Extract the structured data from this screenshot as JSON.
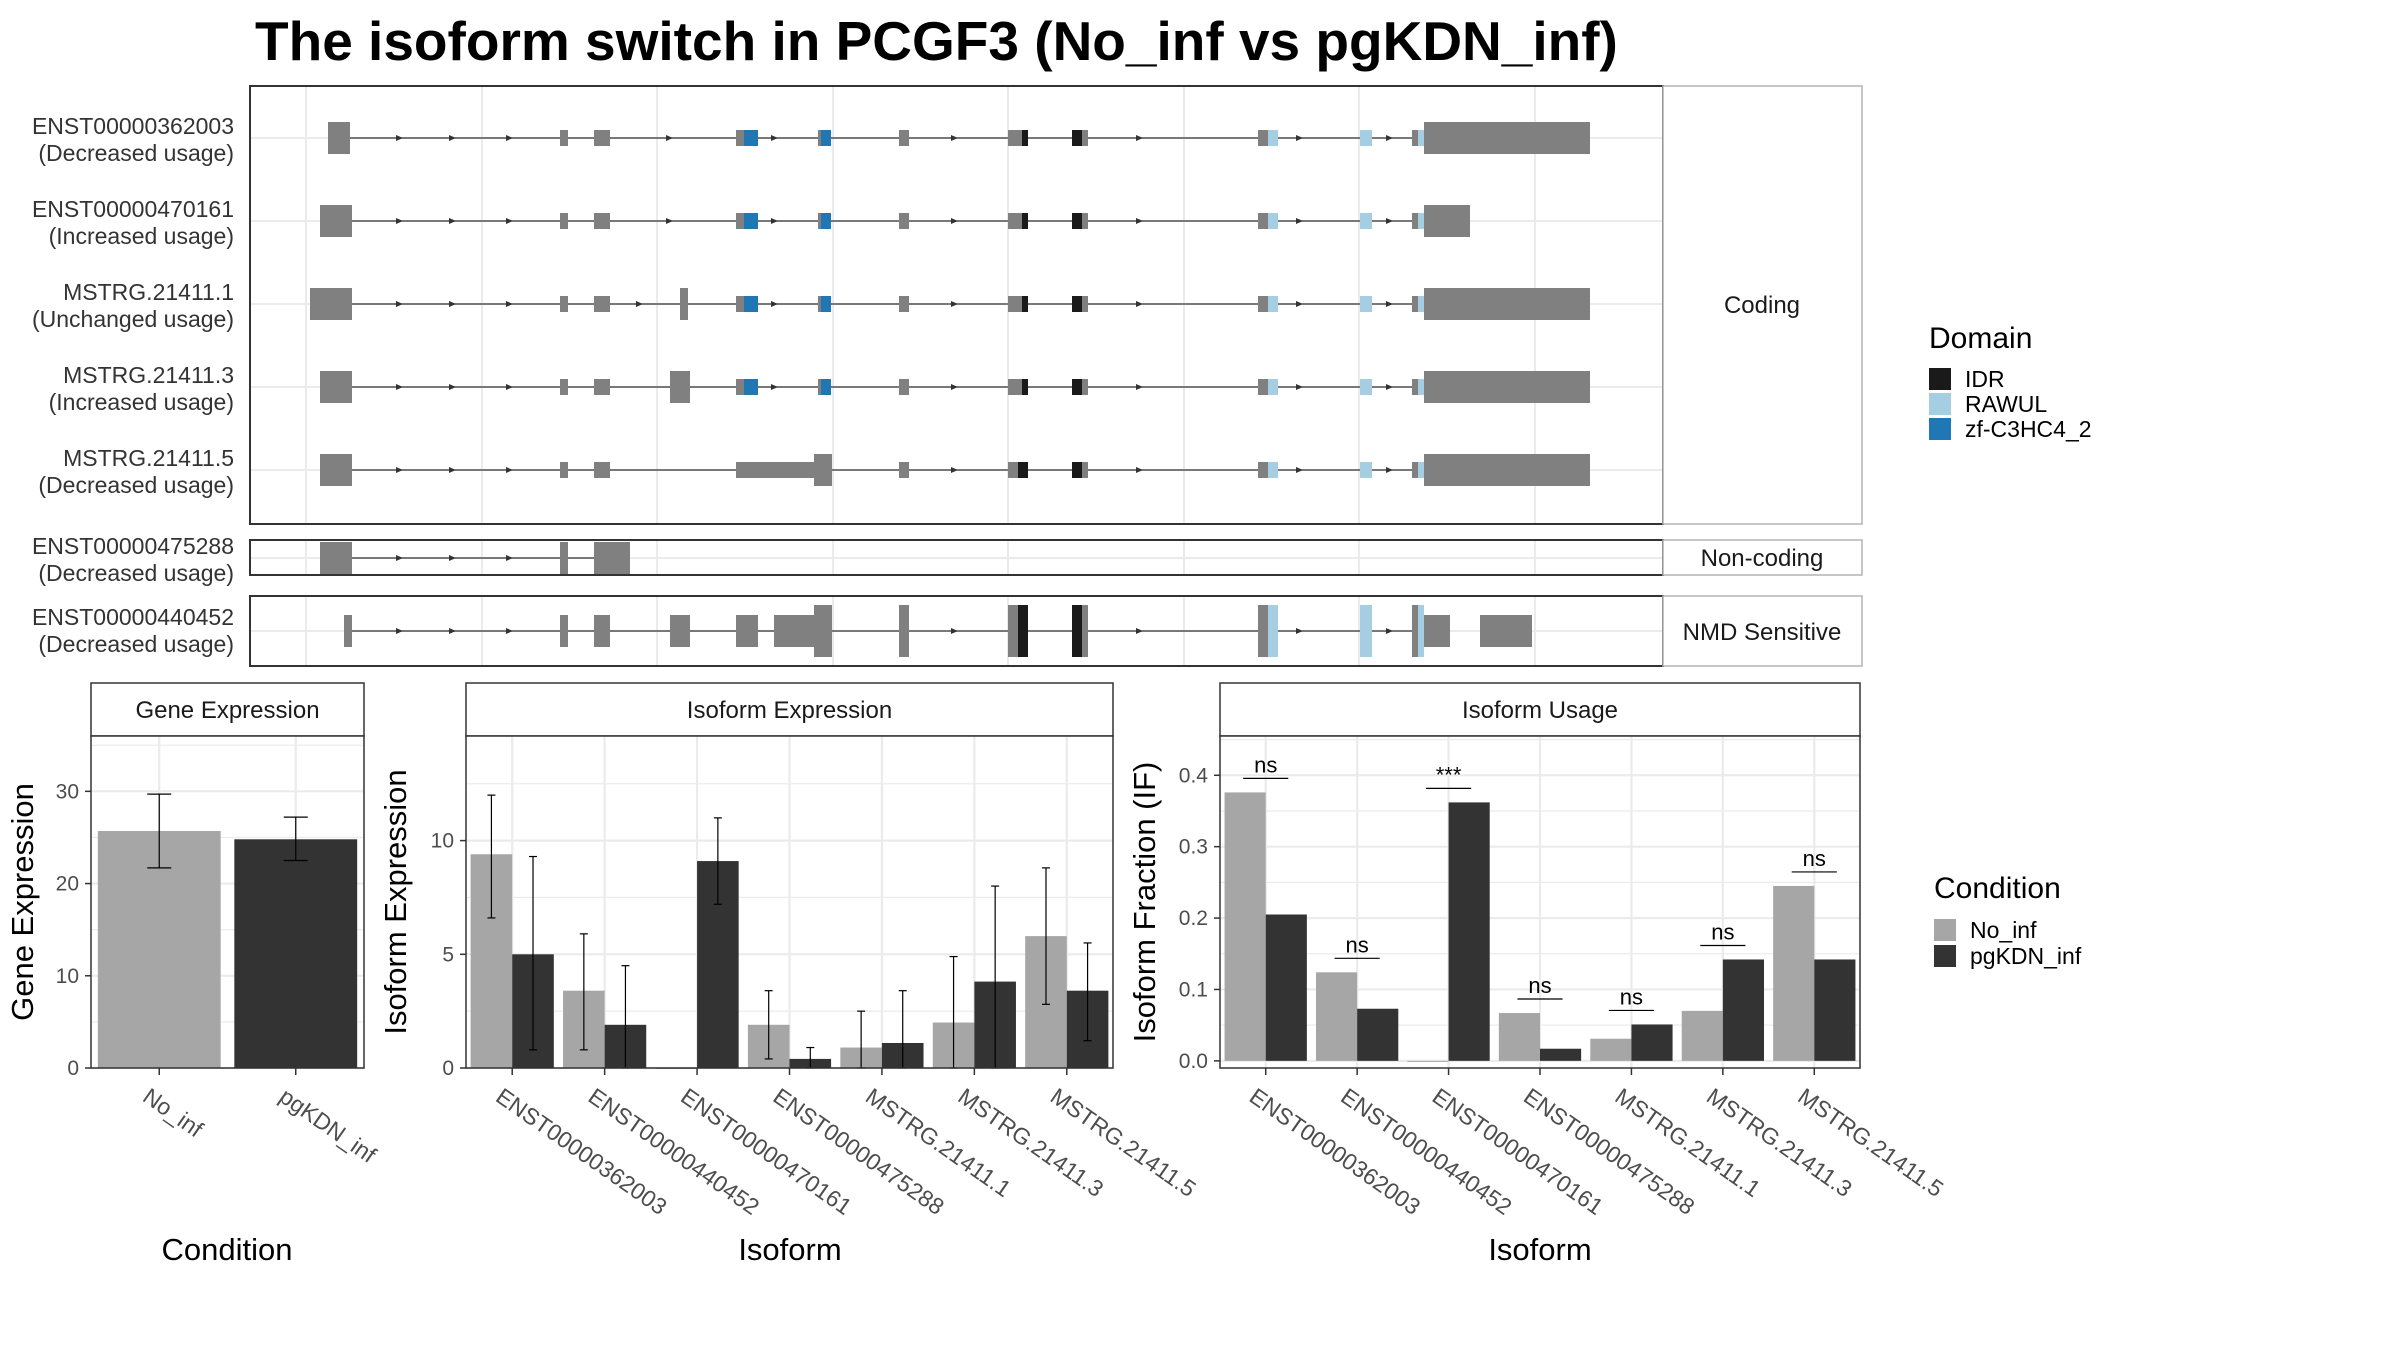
{
  "title": "The isoform switch in PCGF3 (No_inf vs pgKDN_inf)",
  "colors": {
    "exon": "#808080",
    "IDR": "#1a1a1a",
    "RAWUL": "#a6cee3",
    "zf-C3HC4_2": "#1f78b4",
    "No_inf": "#a6a6a6",
    "pgKDN_inf": "#333333",
    "grid": "#ebebeb",
    "panel_border": "#333333"
  },
  "legends": {
    "domain": {
      "title": "Domain",
      "items": [
        {
          "label": "IDR",
          "color": "#1a1a1a"
        },
        {
          "label": "RAWUL",
          "color": "#a6cee3"
        },
        {
          "label": "zf-C3HC4_2",
          "color": "#1f78b4"
        }
      ]
    },
    "condition": {
      "title": "Condition",
      "items": [
        {
          "label": "No_inf",
          "color": "#a6a6a6"
        },
        {
          "label": "pgKDN_inf",
          "color": "#333333"
        }
      ]
    }
  },
  "transcript_groups": [
    {
      "label": "Coding",
      "transcripts": [
        {
          "id": "ENST00000362003",
          "usage": "(Decreased usage)"
        },
        {
          "id": "ENST00000470161",
          "usage": "(Increased usage)"
        },
        {
          "id": "MSTRG.21411.1",
          "usage": "(Unchanged usage)"
        },
        {
          "id": "MSTRG.21411.3",
          "usage": "(Increased usage)"
        },
        {
          "id": "MSTRG.21411.5",
          "usage": "(Decreased usage)"
        }
      ]
    },
    {
      "label": "Non-coding",
      "transcripts": [
        {
          "id": "ENST00000475288",
          "usage": "(Decreased usage)"
        }
      ]
    },
    {
      "label": "NMD Sensitive",
      "transcripts": [
        {
          "id": "ENST00000440452",
          "usage": "(Decreased usage)"
        }
      ]
    }
  ],
  "chart_data": [
    {
      "type": "bar",
      "title": "Gene Expression",
      "xlabel": "Condition",
      "ylabel": "Gene Expression",
      "categories": [
        "No_inf",
        "pgKDN_inf"
      ],
      "values": [
        25.7,
        24.8
      ],
      "error_low": [
        21.7,
        22.5
      ],
      "error_high": [
        29.7,
        27.2
      ],
      "ylim": [
        0,
        36
      ],
      "yticks": [
        0,
        10,
        20,
        30
      ],
      "grid": true
    },
    {
      "type": "bar",
      "title": "Isoform Expression",
      "xlabel": "Isoform",
      "ylabel": "Isoform Expression",
      "categories": [
        "ENST00000362003",
        "ENST00000440452",
        "ENST00000470161",
        "ENST00000475288",
        "MSTRG.21411.1",
        "MSTRG.21411.3",
        "MSTRG.21411.5"
      ],
      "series": [
        {
          "name": "No_inf",
          "values": [
            9.4,
            3.4,
            0.0,
            1.9,
            0.9,
            2.0,
            5.8
          ],
          "error_low": [
            6.6,
            0.8,
            0.0,
            0.4,
            0.0,
            0.0,
            2.8
          ],
          "error_high": [
            12.0,
            5.9,
            0.0,
            3.4,
            2.5,
            4.9,
            8.8
          ]
        },
        {
          "name": "pgKDN_inf",
          "values": [
            5.0,
            1.9,
            9.1,
            0.4,
            1.1,
            3.8,
            3.4
          ],
          "error_low": [
            0.8,
            0.0,
            7.2,
            0.0,
            0.0,
            0.0,
            1.2
          ],
          "error_high": [
            9.3,
            4.5,
            11.0,
            0.9,
            3.4,
            8.0,
            5.5
          ]
        }
      ],
      "ylim": [
        0,
        14.6
      ],
      "yticks": [
        0,
        5,
        10
      ],
      "grid": true
    },
    {
      "type": "bar",
      "title": "Isoform Usage",
      "xlabel": "Isoform",
      "ylabel": "Isoform Fraction (IF)",
      "categories": [
        "ENST00000362003",
        "ENST00000440452",
        "ENST00000470161",
        "ENST00000475288",
        "MSTRG.21411.1",
        "MSTRG.21411.3",
        "MSTRG.21411.5"
      ],
      "series": [
        {
          "name": "No_inf",
          "values": [
            0.376,
            0.124,
            0.0,
            0.067,
            0.031,
            0.07,
            0.245
          ]
        },
        {
          "name": "pgKDN_inf",
          "values": [
            0.205,
            0.073,
            0.362,
            0.017,
            0.051,
            0.142,
            0.142
          ]
        }
      ],
      "significance": [
        "ns",
        "ns",
        "***",
        "ns",
        "ns",
        "ns",
        "ns"
      ],
      "ylim": [
        -0.01,
        0.455
      ],
      "yticks": [
        0.0,
        0.1,
        0.2,
        0.3,
        0.4
      ],
      "ytick_labels": [
        "0.0",
        "0.1",
        "0.2",
        "0.3",
        "0.4"
      ],
      "grid": true
    }
  ]
}
